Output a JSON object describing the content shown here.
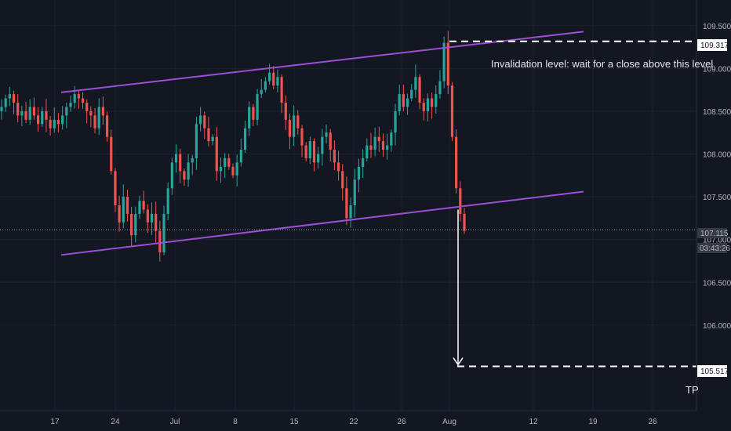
{
  "chart_data": {
    "type": "candlestick",
    "symbol_pair": "",
    "y_axis": {
      "min": 105.0,
      "max": 109.8,
      "ticks": [
        "109.500",
        "109.000",
        "108.500",
        "108.000",
        "107.500",
        "107.000",
        "106.500",
        "106.000"
      ]
    },
    "x_axis": {
      "ticks": [
        "17",
        "24",
        "Jul",
        "8",
        "15",
        "22",
        "26",
        "Aug",
        "12",
        "19",
        "26"
      ]
    },
    "last_price": {
      "value": "107.115",
      "timer": "03:43:26"
    },
    "levels": {
      "invalidation": {
        "value": "109.317"
      },
      "tp": {
        "value": "105.517"
      }
    },
    "channel": {
      "upper": {
        "start": [
          "Jun 17",
          108.72
        ],
        "end": [
          "Aug 18",
          109.43
        ]
      },
      "lower": {
        "start": [
          "Jun 17",
          106.82
        ],
        "end": [
          "Aug 18",
          107.56
        ]
      }
    },
    "annotations": {
      "invalidation_text": "Invalidation level: wait for a close above this level",
      "tp_text": "TP"
    },
    "colors": {
      "background": "#131722",
      "up": "#26a69a",
      "down": "#ef5350",
      "channel": "#9c4fd6",
      "dashed": "#ffffff"
    },
    "series_close": [
      108.55,
      108.65,
      108.7,
      108.6,
      108.45,
      108.5,
      108.4,
      108.55,
      108.45,
      108.35,
      108.5,
      108.4,
      108.3,
      108.4,
      108.35,
      108.45,
      108.55,
      108.6,
      108.7,
      108.65,
      108.6,
      108.5,
      108.45,
      108.3,
      108.55,
      108.45,
      108.2,
      107.8,
      107.4,
      107.2,
      107.5,
      107.3,
      107.05,
      107.3,
      107.45,
      107.35,
      107.2,
      107.3,
      107.1,
      106.85,
      107.3,
      107.6,
      107.9,
      108.0,
      107.8,
      107.7,
      107.9,
      107.95,
      108.35,
      108.45,
      108.3,
      108.15,
      108.2,
      107.8,
      107.85,
      107.95,
      107.85,
      107.75,
      107.9,
      108.05,
      108.3,
      108.55,
      108.4,
      108.7,
      108.75,
      108.85,
      108.95,
      108.8,
      108.9,
      108.6,
      108.4,
      108.2,
      108.45,
      108.3,
      108.1,
      107.95,
      108.15,
      107.9,
      108.0,
      108.2,
      108.25,
      108.05,
      107.9,
      107.8,
      107.6,
      107.25,
      107.4,
      107.7,
      107.85,
      107.95,
      108.1,
      108.05,
      108.2,
      108.15,
      108.05,
      108.1,
      108.25,
      108.5,
      108.7,
      108.55,
      108.65,
      108.75,
      108.9,
      108.6,
      108.5,
      108.65,
      108.55,
      108.7,
      108.85,
      109.3,
      108.8,
      108.2,
      107.6,
      107.3,
      107.1
    ]
  }
}
